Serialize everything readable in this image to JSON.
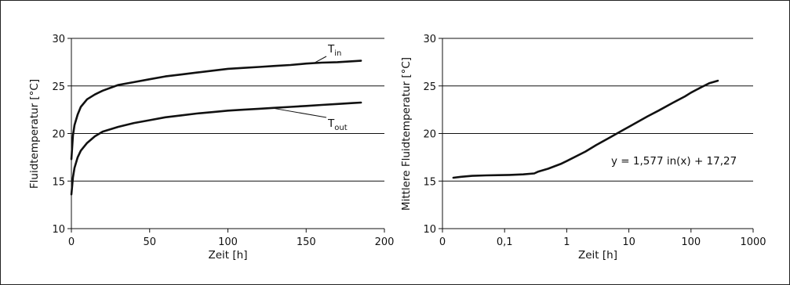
{
  "chart_data": [
    {
      "type": "line",
      "title": "",
      "xlabel": "Zeit [h]",
      "ylabel": "Fluidtemperatur [°C]",
      "xlim": [
        0,
        200
      ],
      "ylim": [
        10,
        30
      ],
      "xticks": [
        0,
        50,
        100,
        150,
        200
      ],
      "yticks": [
        10,
        15,
        20,
        25,
        30
      ],
      "grid": "horizontal",
      "series": [
        {
          "name": "T_in",
          "label_main": "T",
          "label_sub": "in",
          "x": [
            0,
            1,
            2,
            4,
            6,
            10,
            15,
            20,
            30,
            40,
            50,
            60,
            70,
            80,
            90,
            100,
            110,
            120,
            130,
            140,
            150,
            160,
            170,
            180,
            185
          ],
          "y": [
            17.3,
            19.8,
            20.9,
            22.0,
            22.8,
            23.6,
            24.1,
            24.5,
            25.1,
            25.4,
            25.7,
            26.0,
            26.2,
            26.4,
            26.6,
            26.8,
            26.9,
            27.0,
            27.1,
            27.2,
            27.35,
            27.45,
            27.5,
            27.6,
            27.65
          ]
        },
        {
          "name": "T_out",
          "label_main": "T",
          "label_sub": "out",
          "x": [
            0,
            1,
            2,
            4,
            6,
            10,
            15,
            20,
            30,
            40,
            50,
            60,
            70,
            80,
            90,
            100,
            110,
            120,
            130,
            140,
            150,
            160,
            170,
            180,
            185
          ],
          "y": [
            13.6,
            15.4,
            16.4,
            17.5,
            18.2,
            19.0,
            19.7,
            20.2,
            20.7,
            21.1,
            21.4,
            21.7,
            21.9,
            22.1,
            22.25,
            22.4,
            22.5,
            22.6,
            22.7,
            22.8,
            22.9,
            23.0,
            23.1,
            23.2,
            23.25
          ]
        }
      ]
    },
    {
      "type": "line",
      "title": "",
      "xlabel": "Zeit [h]",
      "ylabel": "Mittlere Fluidtemperatur [°C]",
      "xscale": "log",
      "xlim": [
        0.01,
        1000
      ],
      "ylim": [
        10,
        30
      ],
      "xticks": [
        0.01,
        0.1,
        1,
        10,
        100,
        1000
      ],
      "xticklabels": [
        "0",
        "0,1",
        "1",
        "10",
        "100",
        "1000"
      ],
      "yticks": [
        10,
        15,
        20,
        25,
        30
      ],
      "grid": "horizontal",
      "annotation": "y = 1,577 in(x) + 17,27",
      "series": [
        {
          "x": [
            0.015,
            0.02,
            0.03,
            0.05,
            0.08,
            0.12,
            0.2,
            0.3,
            0.35,
            0.5,
            0.8,
            1,
            2,
            3,
            5,
            8,
            10,
            20,
            30,
            50,
            80,
            100,
            150,
            200,
            270
          ],
          "y": [
            15.35,
            15.45,
            15.55,
            15.6,
            15.62,
            15.65,
            15.7,
            15.8,
            16.0,
            16.3,
            16.8,
            17.1,
            18.1,
            18.8,
            19.6,
            20.35,
            20.7,
            21.8,
            22.4,
            23.2,
            23.9,
            24.3,
            24.9,
            25.3,
            25.55
          ]
        }
      ]
    }
  ]
}
